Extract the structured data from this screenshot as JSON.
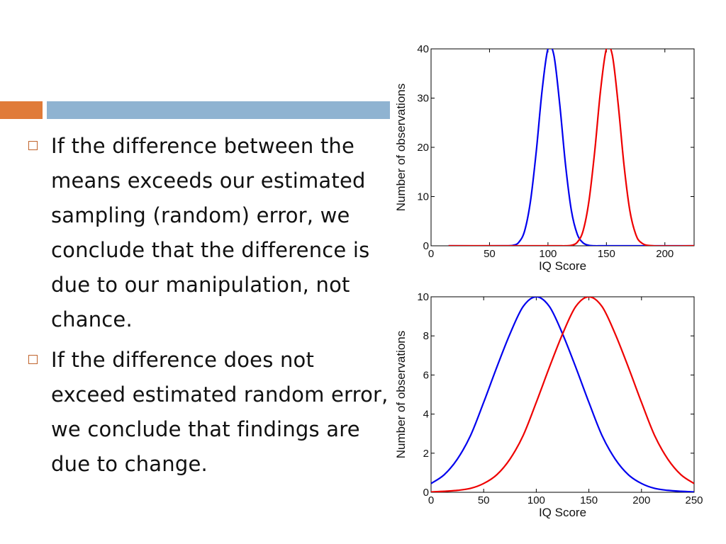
{
  "bullets": [
    "If the difference between the means exceeds our estimated sampling (random) error, we conclude that the difference is due to our manipulation, not chance.",
    "If the difference does not exceed estimated random error, we conclude that findings are due to change."
  ],
  "chart_data": [
    {
      "type": "line",
      "title": "",
      "xlabel": "IQ Score",
      "ylabel": "Number of observations",
      "xlim": [
        0,
        225
      ],
      "ylim": [
        0,
        40
      ],
      "xticks": [
        0,
        50,
        100,
        150,
        200
      ],
      "yticks": [
        0,
        10,
        20,
        30,
        40
      ],
      "grid": false,
      "x": [
        15,
        60,
        70,
        75,
        80,
        85,
        90,
        95,
        100,
        105,
        110,
        115,
        120,
        125,
        130,
        135,
        140,
        145,
        150,
        155,
        160,
        165,
        170,
        175,
        180,
        190,
        225
      ],
      "series": [
        {
          "color": "#0000ee",
          "values": [
            0,
            0,
            0.1,
            0.7,
            3.0,
            9.0,
            19.2,
            31.6,
            40,
            38.8,
            28.9,
            16.5,
            7.2,
            2.4,
            0.6,
            0.1,
            0,
            0,
            0,
            0,
            0,
            0,
            0,
            0,
            0,
            0,
            0
          ]
        },
        {
          "color": "#ee0000",
          "values": [
            0,
            0,
            0,
            0,
            0,
            0,
            0,
            0,
            0,
            0,
            0,
            0,
            0.1,
            0.7,
            3.0,
            9.0,
            19.2,
            31.6,
            40,
            38.8,
            28.9,
            16.5,
            7.2,
            2.4,
            0.6,
            0,
            0
          ]
        }
      ]
    },
    {
      "type": "line",
      "title": "",
      "xlabel": "IQ Score",
      "ylabel": "Number of observations",
      "xlim": [
        0,
        250
      ],
      "ylim": [
        0,
        10
      ],
      "xticks": [
        0,
        50,
        100,
        150,
        200,
        250
      ],
      "yticks": [
        0,
        2,
        4,
        6,
        8,
        10
      ],
      "grid": false,
      "x": [
        0,
        12.5,
        25,
        37.5,
        50,
        62.5,
        75,
        87.5,
        100,
        112.5,
        125,
        137.5,
        150,
        162.5,
        175,
        187.5,
        200,
        212.5,
        225,
        237.5,
        250
      ],
      "series": [
        {
          "color": "#0000ee",
          "values": [
            0.45,
            0.9,
            1.7,
            2.9,
            4.6,
            6.4,
            8.1,
            9.5,
            10,
            9.5,
            8.1,
            6.4,
            4.6,
            2.9,
            1.7,
            0.9,
            0.45,
            0.2,
            0.1,
            0.05,
            0.02
          ]
        },
        {
          "color": "#ee0000",
          "values": [
            0.02,
            0.05,
            0.1,
            0.2,
            0.45,
            0.9,
            1.7,
            2.9,
            4.6,
            6.4,
            8.1,
            9.5,
            10,
            9.5,
            8.1,
            6.4,
            4.6,
            2.9,
            1.7,
            0.9,
            0.45
          ]
        }
      ]
    }
  ]
}
